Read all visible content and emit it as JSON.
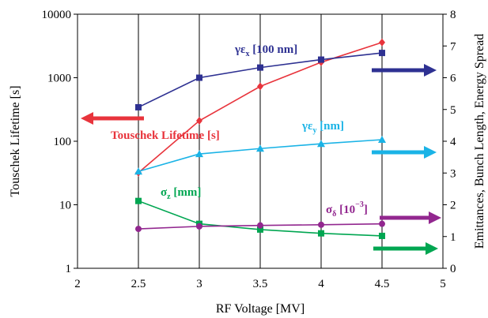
{
  "chart_data": {
    "type": "line",
    "xlabel": "RF Voltage [MV]",
    "ylabel_left": "Touschek Lifetime [s]",
    "ylabel_right": "Emittances, Bunch Length, Energy Spread",
    "xlim": [
      2,
      5
    ],
    "ylim_left": [
      1,
      10000
    ],
    "ylim_right": [
      0,
      8
    ],
    "left_scale": "log",
    "x_ticks": [
      "2",
      "2.5",
      "3",
      "3.5",
      "4",
      "4.5",
      "5"
    ],
    "y_left_ticks": [
      "1",
      "10",
      "100",
      "1000",
      "10000"
    ],
    "y_right_ticks": [
      "0",
      "1",
      "2",
      "3",
      "4",
      "5",
      "6",
      "7",
      "8"
    ],
    "grid": "vertical",
    "series": [
      {
        "name": "Touschek Lifetime [s]",
        "axis": "left",
        "color": "#e8343c",
        "marker": "diamond",
        "arrow": "left",
        "x": [
          2.5,
          3,
          3.5,
          4,
          4.5
        ],
        "values": [
          32,
          210,
          730,
          1750,
          3600
        ]
      },
      {
        "name_main": "γε",
        "name_sub": "x",
        "name_suffix": " [100 nm]",
        "axis": "right",
        "color": "#2e3192",
        "marker": "square",
        "arrow": "right",
        "x": [
          2.5,
          3,
          3.5,
          4,
          4.5
        ],
        "values": [
          5.07,
          6.0,
          6.32,
          6.57,
          6.78
        ]
      },
      {
        "name_main": "γε",
        "name_sub": "y",
        "name_suffix": " [nm]",
        "axis": "right",
        "color": "#1ab3e6",
        "marker": "triangle",
        "arrow": "right",
        "x": [
          2.5,
          3,
          3.5,
          4,
          4.5
        ],
        "values": [
          3.05,
          3.6,
          3.77,
          3.92,
          4.05
        ]
      },
      {
        "name_main": "σ",
        "name_sub": "z",
        "name_suffix": " [mm]",
        "axis": "right",
        "color": "#00a651",
        "marker": "square",
        "arrow": "right",
        "x": [
          2.5,
          3,
          3.5,
          4,
          4.5
        ],
        "values": [
          2.12,
          1.4,
          1.22,
          1.1,
          1.02
        ]
      },
      {
        "name_main": "σ",
        "name_sub": "δ",
        "name_suffix": " [10",
        "name_sup": "−3",
        "name_end": "]",
        "axis": "right",
        "color": "#92278f",
        "marker": "circle",
        "arrow": "right",
        "x": [
          2.5,
          3,
          3.5,
          4,
          4.5
        ],
        "values": [
          1.24,
          1.32,
          1.35,
          1.37,
          1.4
        ]
      }
    ]
  }
}
